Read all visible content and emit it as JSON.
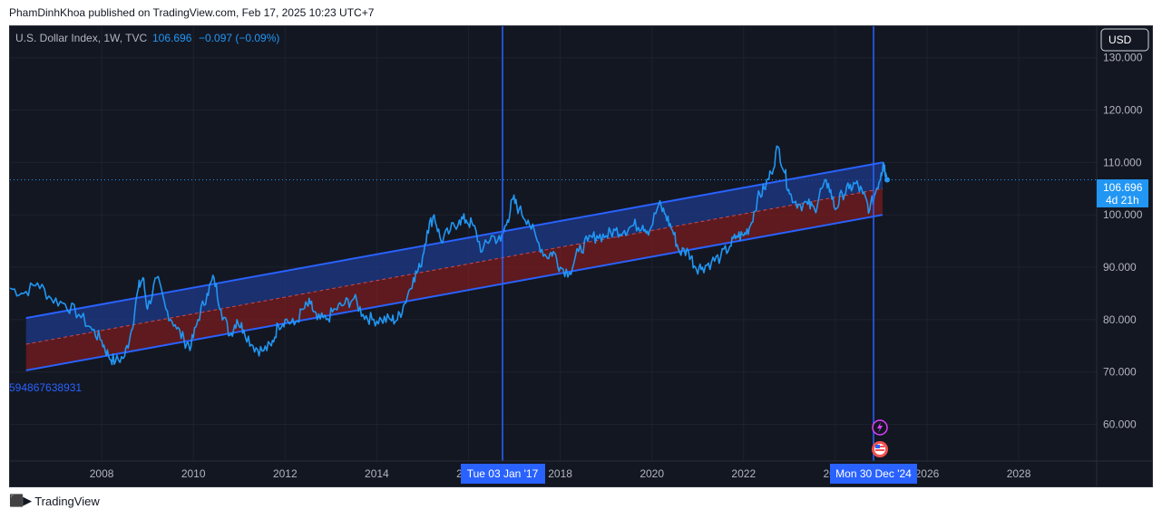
{
  "header": {
    "published": "PhamDinhKhoa published on TradingView.com, Feb 17, 2025 10:23 UTC+7"
  },
  "legend": {
    "symbol": "U.S. Dollar Index, 1W, TVC",
    "price": "106.696",
    "change": "−0.097 (−0.09%)"
  },
  "currency_button": "USD",
  "price_label": {
    "value": "106.696",
    "countdown": "4d 21h"
  },
  "date_labels": {
    "first": "Tue 03 Jan '17",
    "second": "Mon 30 Dec '24"
  },
  "left_label": "594867638931",
  "footer": {
    "brand": "TradingView"
  },
  "colors": {
    "background": "#131722",
    "line": "#2196f3",
    "channel_line": "#2962ff",
    "upper_fill": "#1e3a8a",
    "lower_fill": "#7f1d1d",
    "vline": "#2962ff",
    "price_label_bg": "#2196f3",
    "date_label_bg": "#2962ff"
  },
  "chart_data": {
    "type": "line",
    "title": "U.S. Dollar Index, 1W, TVC",
    "x_ticks": [
      "2008",
      "2010",
      "2012",
      "2014",
      "2016",
      "2018",
      "2020",
      "2022",
      "2024",
      "2026",
      "2028"
    ],
    "y_ticks": [
      "60.000",
      "70.000",
      "80.000",
      "90.000",
      "100.000",
      "110.000",
      "120.000",
      "130.000"
    ],
    "ylim": [
      53,
      136
    ],
    "xlim": [
      2006.0,
      2029.7
    ],
    "grid": true,
    "series": [
      {
        "values_xy": [
          [
            2006.0,
            86
          ],
          [
            2006.3,
            85
          ],
          [
            2006.6,
            87
          ],
          [
            2006.9,
            84
          ],
          [
            2007.2,
            83
          ],
          [
            2007.5,
            81
          ],
          [
            2007.8,
            78
          ],
          [
            2008.0,
            76
          ],
          [
            2008.15,
            73
          ],
          [
            2008.3,
            72
          ],
          [
            2008.5,
            73
          ],
          [
            2008.65,
            78
          ],
          [
            2008.8,
            86
          ],
          [
            2008.9,
            88
          ],
          [
            2009.0,
            82
          ],
          [
            2009.2,
            88
          ],
          [
            2009.4,
            82
          ],
          [
            2009.6,
            79
          ],
          [
            2009.8,
            76
          ],
          [
            2009.95,
            75
          ],
          [
            2010.1,
            80
          ],
          [
            2010.3,
            85
          ],
          [
            2010.45,
            88
          ],
          [
            2010.6,
            82
          ],
          [
            2010.8,
            77
          ],
          [
            2010.95,
            80
          ],
          [
            2011.1,
            78
          ],
          [
            2011.3,
            75
          ],
          [
            2011.5,
            74
          ],
          [
            2011.7,
            75
          ],
          [
            2011.85,
            79
          ],
          [
            2012.0,
            80
          ],
          [
            2012.2,
            79
          ],
          [
            2012.4,
            82
          ],
          [
            2012.55,
            83
          ],
          [
            2012.7,
            80
          ],
          [
            2012.9,
            80
          ],
          [
            2013.1,
            82
          ],
          [
            2013.3,
            83
          ],
          [
            2013.5,
            84
          ],
          [
            2013.7,
            81
          ],
          [
            2013.9,
            80
          ],
          [
            2014.1,
            80
          ],
          [
            2014.3,
            80
          ],
          [
            2014.45,
            80
          ],
          [
            2014.6,
            83
          ],
          [
            2014.8,
            88
          ],
          [
            2014.95,
            90
          ],
          [
            2015.1,
            97
          ],
          [
            2015.25,
            100
          ],
          [
            2015.4,
            95
          ],
          [
            2015.6,
            97
          ],
          [
            2015.8,
            99
          ],
          [
            2015.95,
            99
          ],
          [
            2016.1,
            98
          ],
          [
            2016.3,
            93
          ],
          [
            2016.5,
            96
          ],
          [
            2016.7,
            95
          ],
          [
            2016.85,
            99
          ],
          [
            2016.97,
            103
          ],
          [
            2017.1,
            101
          ],
          [
            2017.3,
            99
          ],
          [
            2017.5,
            95
          ],
          [
            2017.7,
            92
          ],
          [
            2017.85,
            93
          ],
          [
            2018.0,
            90
          ],
          [
            2018.2,
            89
          ],
          [
            2018.4,
            93
          ],
          [
            2018.6,
            95
          ],
          [
            2018.8,
            96
          ],
          [
            2019.0,
            96
          ],
          [
            2019.2,
            97
          ],
          [
            2019.4,
            97
          ],
          [
            2019.6,
            98
          ],
          [
            2019.8,
            98
          ],
          [
            2019.95,
            97
          ],
          [
            2020.15,
            102
          ],
          [
            2020.3,
            100
          ],
          [
            2020.45,
            97
          ],
          [
            2020.6,
            93
          ],
          [
            2020.8,
            93
          ],
          [
            2020.95,
            90
          ],
          [
            2021.1,
            90
          ],
          [
            2021.3,
            91
          ],
          [
            2021.5,
            92
          ],
          [
            2021.7,
            94
          ],
          [
            2021.85,
            96
          ],
          [
            2022.0,
            96
          ],
          [
            2022.15,
            98
          ],
          [
            2022.3,
            103
          ],
          [
            2022.45,
            105
          ],
          [
            2022.6,
            108
          ],
          [
            2022.75,
            113
          ],
          [
            2022.9,
            108
          ],
          [
            2023.0,
            104
          ],
          [
            2023.2,
            102
          ],
          [
            2023.4,
            102
          ],
          [
            2023.55,
            101
          ],
          [
            2023.7,
            105
          ],
          [
            2023.85,
            106
          ],
          [
            2024.0,
            101
          ],
          [
            2024.15,
            104
          ],
          [
            2024.3,
            105
          ],
          [
            2024.45,
            106
          ],
          [
            2024.6,
            104
          ],
          [
            2024.75,
            101
          ],
          [
            2024.9,
            105
          ],
          [
            2025.0,
            108
          ],
          [
            2025.05,
            110
          ],
          [
            2025.1,
            108
          ],
          [
            2025.13,
            106.7
          ]
        ]
      }
    ],
    "channel": {
      "x_start": 2006.35,
      "x_end": 2025.03,
      "upper": [
        80.3,
        110.0
      ],
      "middle": [
        75.3,
        105.0
      ],
      "lower": [
        70.3,
        100.0
      ]
    },
    "vertical_markers": [
      "Tue 03 Jan '17",
      "Mon 30 Dec '24"
    ],
    "last_price": "106.696"
  }
}
